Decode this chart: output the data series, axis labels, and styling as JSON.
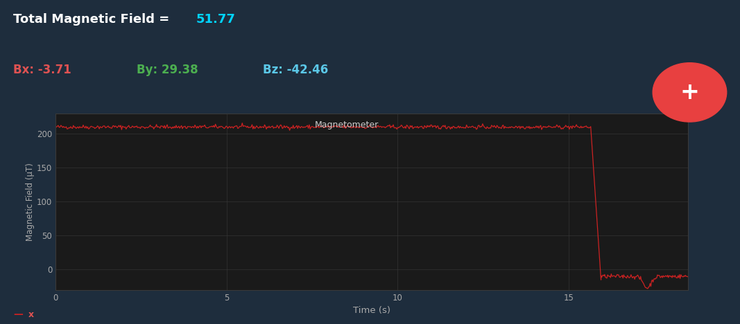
{
  "background_color": "#1e2d3d",
  "header_bg_color": "#263545",
  "plot_bg_color": "#1a1a1a",
  "plot_area_bg": "#2a2a2a",
  "title_text": "Total Magnetic Field = ",
  "title_value": "51.77",
  "bx_label": "Bx: -3.71",
  "by_label": "By: 29.38",
  "bz_label": "Bz: -42.46",
  "bx_color": "#e05252",
  "by_color": "#4caf50",
  "bz_color": "#5bc8e8",
  "title_color": "#ffffff",
  "title_value_color": "#00d4ff",
  "line_color": "#cc2222",
  "legend_label": "Magnetometer",
  "xlabel": "Time (s)",
  "ylabel": "Magnetic Field (μT)",
  "xlim": [
    0,
    18.5
  ],
  "ylim": [
    -30,
    230
  ],
  "yticks": [
    0,
    50,
    100,
    150,
    200
  ],
  "xticks": [
    0,
    5,
    10,
    15
  ],
  "grid_color": "#3a3a3a",
  "axes_color": "#aaaaaa",
  "flat_value": 210,
  "flat_noise": 1.5,
  "flat_start": 0,
  "flat_end": 15.65,
  "drop_start": 15.65,
  "drop_end": 15.95,
  "drop_value": -15,
  "post_drop_end": 18.5,
  "post_drop_value": -10,
  "dip_time": 17.3,
  "dip_value": -27,
  "fab_color": "#e84040",
  "legend_line_color": "#cc2222",
  "bottom_label": "x"
}
